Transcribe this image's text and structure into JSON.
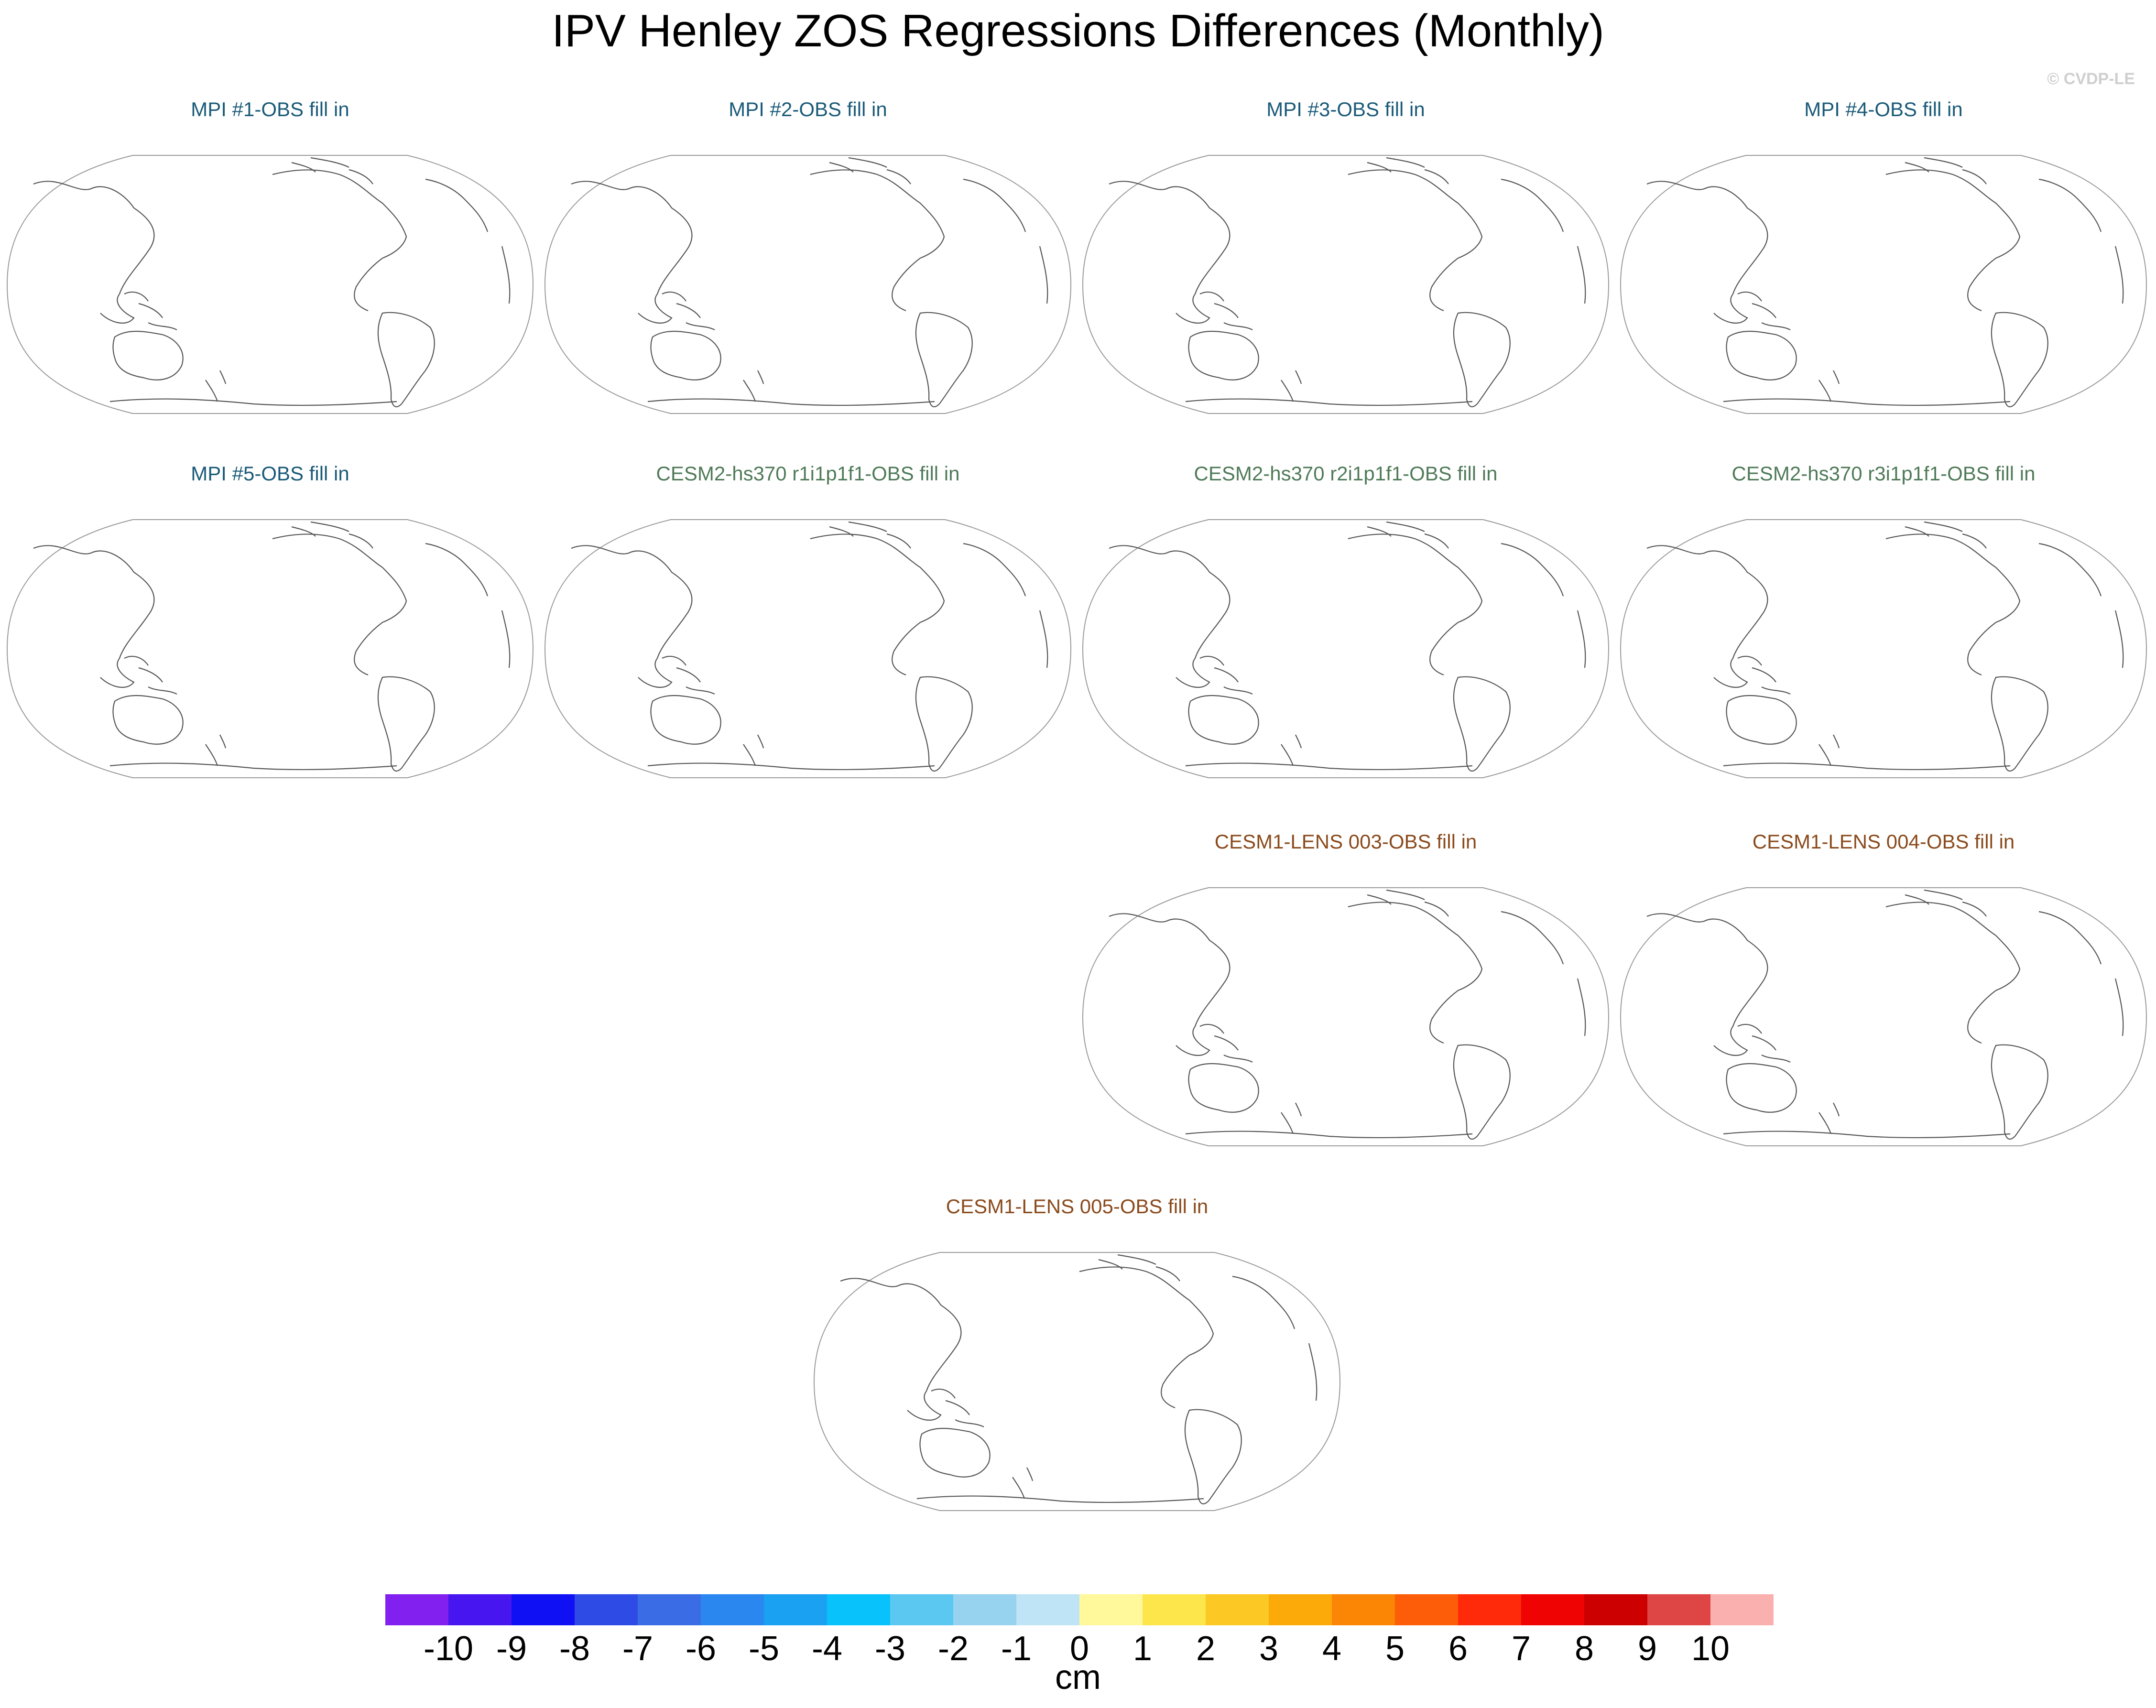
{
  "title": "IPV Henley ZOS Regressions Differences (Monthly)",
  "watermark": "© CVDP-LE",
  "chart_data": {
    "type": "heatmap",
    "title": "IPV Henley ZOS Regressions Differences (Monthly)",
    "panels": [
      {
        "title": "MPI #1-OBS fill in",
        "color": "#1a5a78"
      },
      {
        "title": "MPI #2-OBS fill in",
        "color": "#1a5a78"
      },
      {
        "title": "MPI #3-OBS fill in",
        "color": "#1a5a78"
      },
      {
        "title": "MPI #4-OBS fill in",
        "color": "#1a5a78"
      },
      {
        "title": "MPI #5-OBS fill in",
        "color": "#1a5a78"
      },
      {
        "title": "CESM2-hs370 r1i1p1f1-OBS fill in",
        "color": "#4f7a58"
      },
      {
        "title": "CESM2-hs370 r2i1p1f1-OBS fill in",
        "color": "#4f7a58"
      },
      {
        "title": "CESM2-hs370 r3i1p1f1-OBS fill in",
        "color": "#4f7a58"
      },
      {
        "title": "CESM1-LENS 003-OBS fill in",
        "color": "#8a4a1c"
      },
      {
        "title": "CESM1-LENS 004-OBS fill in",
        "color": "#8a4a1c"
      },
      {
        "title": "CESM1-LENS 005-OBS fill in",
        "color": "#8a4a1c"
      }
    ],
    "colorbar": {
      "units": "cm",
      "levels": [
        "-10",
        "-9",
        "-8",
        "-7",
        "-6",
        "-5",
        "-4",
        "-3",
        "-2",
        "-1",
        "0",
        "1",
        "2",
        "3",
        "4",
        "5",
        "6",
        "7",
        "8",
        "9",
        "10"
      ],
      "colors": [
        "#8221ef",
        "#4615ef",
        "#1010f5",
        "#2f4be6",
        "#3a6ce6",
        "#2b87f0",
        "#1aa1f2",
        "#08c2fb",
        "#5bc8f2",
        "#97d2ef",
        "#bfe4f6",
        "#fff99b",
        "#fde64c",
        "#fcc824",
        "#fbaa0a",
        "#fb8504",
        "#fd5c08",
        "#fe2a0a",
        "#ef0303",
        "#cc0000",
        "#de4545",
        "#fbb0b0"
      ]
    }
  }
}
